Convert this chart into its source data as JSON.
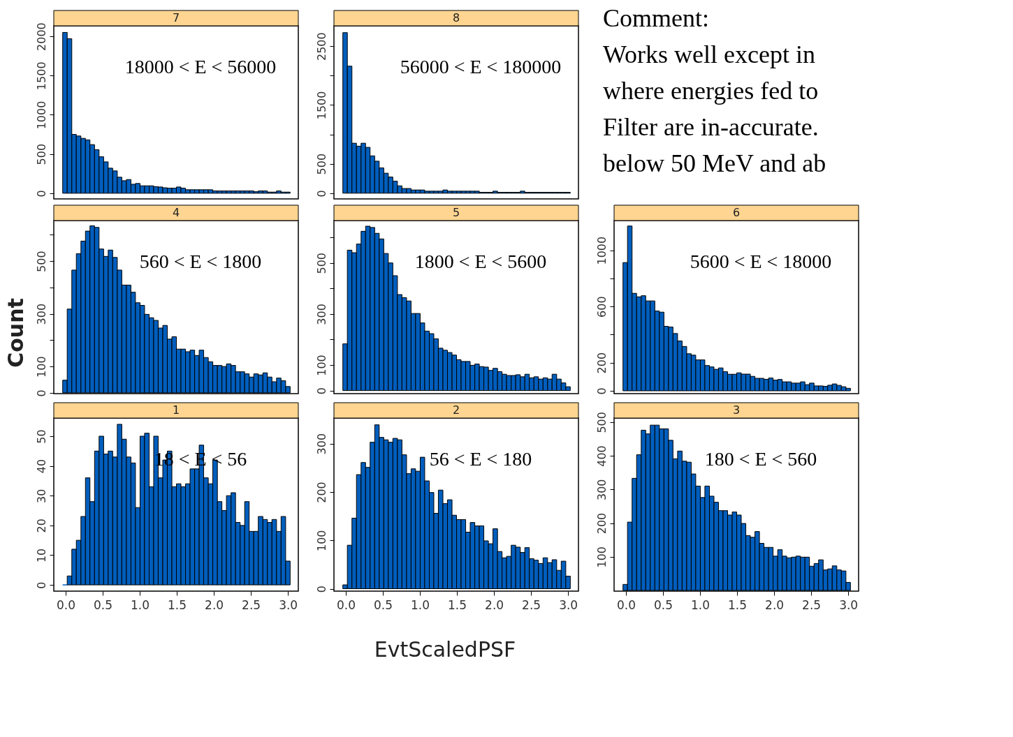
{
  "chart_data": [
    {
      "type": "histogram",
      "title": "7",
      "annotations": [
        "18000 < E < 56000"
      ],
      "color": "#005ebd",
      "tick_labels": "y",
      "xlim": [
        -0.16,
        3.14
      ],
      "ylim": [
        -72,
        2134
      ],
      "yticks": [
        0,
        500,
        1000,
        1500,
        2000
      ],
      "bins": [
        -0.04,
        0.021,
        0.083,
        0.144,
        0.206,
        0.267,
        0.328,
        0.39,
        0.451,
        0.513,
        0.574,
        0.635,
        0.697,
        0.758,
        0.82,
        0.881,
        0.942,
        1.004,
        1.065,
        1.127,
        1.188,
        1.249,
        1.311,
        1.372,
        1.434,
        1.495,
        1.556,
        1.618,
        1.679,
        1.741,
        1.802,
        1.863,
        1.925,
        1.986,
        2.048,
        2.109,
        2.17,
        2.232,
        2.293,
        2.355,
        2.416,
        2.477,
        2.539,
        2.6,
        2.662,
        2.723,
        2.784,
        2.846,
        2.907,
        2.969,
        3.03
      ],
      "values": [
        2050,
        1970,
        750,
        730,
        700,
        680,
        620,
        555,
        465,
        400,
        320,
        285,
        205,
        160,
        175,
        115,
        125,
        95,
        95,
        95,
        85,
        80,
        70,
        65,
        65,
        80,
        65,
        45,
        45,
        45,
        45,
        45,
        45,
        30,
        30,
        30,
        30,
        30,
        30,
        30,
        30,
        30,
        20,
        30,
        30,
        15,
        15,
        30,
        15,
        15
      ]
    },
    {
      "type": "histogram",
      "title": "8",
      "annotations": [
        "56000 < E < 180000"
      ],
      "color": "#005ebd",
      "tick_labels": "y",
      "xlim": [
        -0.16,
        3.14
      ],
      "ylim": [
        -97,
        2846
      ],
      "yticks": [
        0,
        500,
        {
          "value": 1000,
          "label": null
        },
        1500,
        {
          "value": 2000,
          "label": null
        },
        2500
      ],
      "bins": [
        -0.04,
        0.021,
        0.083,
        0.144,
        0.206,
        0.267,
        0.328,
        0.39,
        0.451,
        0.513,
        0.574,
        0.635,
        0.697,
        0.758,
        0.82,
        0.881,
        0.942,
        1.004,
        1.065,
        1.127,
        1.188,
        1.249,
        1.311,
        1.372,
        1.434,
        1.495,
        1.556,
        1.618,
        1.679,
        1.741,
        1.802,
        1.863,
        1.925,
        1.986,
        2.048,
        2.109,
        2.17,
        2.232,
        2.293,
        2.355,
        2.416,
        2.477,
        2.539,
        2.6,
        2.662,
        2.723,
        2.784,
        2.846,
        2.907,
        2.969,
        3.03
      ],
      "values": [
        2730,
        2160,
        850,
        800,
        850,
        780,
        635,
        545,
        430,
        340,
        275,
        205,
        125,
        80,
        80,
        55,
        55,
        55,
        35,
        35,
        35,
        35,
        55,
        35,
        35,
        35,
        35,
        35,
        35,
        35,
        15,
        15,
        15,
        35,
        15,
        15,
        15,
        15,
        15,
        35,
        15,
        15,
        15,
        15,
        15,
        15,
        15,
        15,
        15,
        15
      ]
    },
    {
      "type": "other",
      "annotations": [
        "Comment:",
        "Works well except in",
        "where energies fed to",
        "Filter are in-accurate.",
        "below 50 MeV and ab"
      ]
    },
    {
      "type": "histogram",
      "title": "4",
      "ylabel": "Count",
      "annotations": [
        "560 < E < 1800"
      ],
      "color": "#005ebd",
      "tick_labels": "y",
      "xlim": [
        -0.16,
        3.14
      ],
      "ylim": [
        -3,
        654
      ],
      "yticks": [
        0,
        100,
        {
          "value": 200,
          "label": null
        },
        300,
        {
          "value": 400,
          "label": null
        },
        500,
        {
          "value": 600,
          "label": null
        }
      ],
      "bins": [
        -0.04,
        0.021,
        0.083,
        0.144,
        0.206,
        0.267,
        0.328,
        0.39,
        0.451,
        0.513,
        0.574,
        0.635,
        0.697,
        0.758,
        0.82,
        0.881,
        0.942,
        1.004,
        1.065,
        1.127,
        1.188,
        1.249,
        1.311,
        1.372,
        1.434,
        1.495,
        1.556,
        1.618,
        1.679,
        1.741,
        1.802,
        1.863,
        1.925,
        1.986,
        2.048,
        2.109,
        2.17,
        2.232,
        2.293,
        2.355,
        2.416,
        2.477,
        2.539,
        2.6,
        2.662,
        2.723,
        2.784,
        2.846,
        2.907,
        2.969,
        3.03
      ],
      "values": [
        48,
        318,
        466,
        528,
        576,
        614,
        634,
        628,
        546,
        518,
        542,
        514,
        466,
        409,
        409,
        382,
        342,
        332,
        298,
        285,
        275,
        246,
        256,
        204,
        213,
        166,
        166,
        156,
        162,
        142,
        162,
        134,
        118,
        104,
        104,
        100,
        110,
        104,
        80,
        80,
        72,
        60,
        72,
        68,
        76,
        60,
        42,
        56,
        46,
        24
      ]
    },
    {
      "type": "histogram",
      "title": "5",
      "annotations": [
        "1800 < E < 5600"
      ],
      "color": "#005ebd",
      "tick_labels": "y",
      "xlim": [
        -0.16,
        3.14
      ],
      "ylim": [
        -12,
        666
      ],
      "yticks": [
        0,
        100,
        {
          "value": 200,
          "label": null
        },
        300,
        {
          "value": 400,
          "label": null
        },
        500,
        {
          "value": 600,
          "label": null
        }
      ],
      "bins": [
        -0.04,
        0.021,
        0.083,
        0.144,
        0.206,
        0.267,
        0.328,
        0.39,
        0.451,
        0.513,
        0.574,
        0.635,
        0.697,
        0.758,
        0.82,
        0.881,
        0.942,
        1.004,
        1.065,
        1.127,
        1.188,
        1.249,
        1.311,
        1.372,
        1.434,
        1.495,
        1.556,
        1.618,
        1.679,
        1.741,
        1.802,
        1.863,
        1.925,
        1.986,
        2.048,
        2.109,
        2.17,
        2.232,
        2.293,
        2.355,
        2.416,
        2.477,
        2.539,
        2.6,
        2.662,
        2.723,
        2.784,
        2.846,
        2.907,
        2.969,
        3.03
      ],
      "values": [
        183,
        550,
        540,
        574,
        624,
        644,
        639,
        616,
        594,
        537,
        500,
        450,
        376,
        364,
        351,
        302,
        302,
        265,
        233,
        223,
        203,
        166,
        158,
        149,
        139,
        121,
        114,
        114,
        99,
        104,
        94,
        92,
        79,
        87,
        74,
        64,
        59,
        59,
        62,
        54,
        64,
        50,
        54,
        45,
        50,
        45,
        64,
        45,
        30,
        15
      ]
    },
    {
      "type": "histogram",
      "title": "6",
      "annotations": [
        "5600 < E < 18000"
      ],
      "color": "#005ebd",
      "tick_labels": "y",
      "xlim": [
        -0.16,
        3.14
      ],
      "ylim": [
        -20,
        1212
      ],
      "yticks": [
        0,
        200,
        {
          "value": 400,
          "label": null
        },
        600,
        {
          "value": 800,
          "label": null
        },
        1000
      ],
      "bins": [
        -0.04,
        0.021,
        0.083,
        0.144,
        0.206,
        0.267,
        0.328,
        0.39,
        0.451,
        0.513,
        0.574,
        0.635,
        0.697,
        0.758,
        0.82,
        0.881,
        0.942,
        1.004,
        1.065,
        1.127,
        1.188,
        1.249,
        1.311,
        1.372,
        1.434,
        1.495,
        1.556,
        1.618,
        1.679,
        1.741,
        1.802,
        1.863,
        1.925,
        1.986,
        2.048,
        2.109,
        2.17,
        2.232,
        2.293,
        2.355,
        2.416,
        2.477,
        2.539,
        2.6,
        2.662,
        2.723,
        2.784,
        2.846,
        2.907,
        2.969,
        3.03
      ],
      "values": [
        913,
        1173,
        694,
        669,
        677,
        640,
        640,
        568,
        560,
        459,
        454,
        408,
        355,
        316,
        264,
        254,
        220,
        220,
        180,
        170,
        153,
        163,
        136,
        118,
        118,
        128,
        119,
        119,
        103,
        89,
        89,
        82,
        91,
        76,
        81,
        64,
        64,
        55,
        55,
        64,
        44,
        55,
        35,
        35,
        32,
        40,
        49,
        39,
        29,
        18
      ]
    },
    {
      "type": "histogram",
      "title": "1",
      "annotations": [
        "18 < E < 56"
      ],
      "color": "#005ebd",
      "xlim": [
        -0.16,
        3.14
      ],
      "xticks": [
        {
          "value": 0,
          "label": "0.0"
        },
        {
          "value": 0.5,
          "label": "0.5"
        },
        {
          "value": 1,
          "label": "1.0"
        },
        {
          "value": 1.5,
          "label": "1.5"
        },
        {
          "value": 2,
          "label": "2.0"
        },
        {
          "value": 2.5,
          "label": "2.5"
        },
        {
          "value": 3,
          "label": "3.0"
        }
      ],
      "ylim": [
        -2.1,
        56.1
      ],
      "yticks": [
        0,
        10,
        20,
        30,
        40,
        50
      ],
      "bins": [
        -0.04,
        0.021,
        0.083,
        0.144,
        0.206,
        0.267,
        0.328,
        0.39,
        0.451,
        0.513,
        0.574,
        0.635,
        0.697,
        0.758,
        0.82,
        0.881,
        0.942,
        1.004,
        1.065,
        1.127,
        1.188,
        1.249,
        1.311,
        1.372,
        1.434,
        1.495,
        1.556,
        1.618,
        1.679,
        1.741,
        1.802,
        1.863,
        1.925,
        1.986,
        2.048,
        2.109,
        2.17,
        2.232,
        2.293,
        2.355,
        2.416,
        2.477,
        2.539,
        2.6,
        2.662,
        2.723,
        2.784,
        2.846,
        2.907,
        2.969,
        3.03
      ],
      "values": [
        0,
        3,
        12,
        15,
        23,
        36,
        28,
        45,
        50,
        44,
        45,
        43,
        54,
        49,
        43,
        41,
        26,
        50,
        51,
        33,
        50,
        36,
        42,
        45,
        33,
        34,
        33,
        34,
        39,
        39,
        47,
        36,
        34,
        42,
        28,
        25,
        30,
        31,
        21,
        20,
        28,
        18,
        18,
        23,
        22,
        21,
        22,
        18,
        23,
        8
      ]
    },
    {
      "type": "histogram",
      "title": "2",
      "xlabel": "EvtScaledPSF",
      "annotations": [
        "56 < E < 180"
      ],
      "color": "#005ebd",
      "xlim": [
        -0.16,
        3.14
      ],
      "xticks": [
        {
          "value": 0,
          "label": "0.0"
        },
        {
          "value": 0.5,
          "label": "0.5"
        },
        {
          "value": 1,
          "label": "1.0"
        },
        {
          "value": 1.5,
          "label": "1.5"
        },
        {
          "value": 2,
          "label": "2.0"
        },
        {
          "value": 2.5,
          "label": "2.5"
        },
        {
          "value": 3,
          "label": "3.0"
        }
      ],
      "ylim": [
        -5,
        353
      ],
      "yticks": [
        0,
        100,
        200,
        300
      ],
      "bins": [
        -0.04,
        0.021,
        0.083,
        0.144,
        0.206,
        0.267,
        0.328,
        0.39,
        0.451,
        0.513,
        0.574,
        0.635,
        0.697,
        0.758,
        0.82,
        0.881,
        0.942,
        1.004,
        1.065,
        1.127,
        1.188,
        1.249,
        1.311,
        1.372,
        1.434,
        1.495,
        1.556,
        1.618,
        1.679,
        1.741,
        1.802,
        1.863,
        1.925,
        1.986,
        2.048,
        2.109,
        2.17,
        2.232,
        2.293,
        2.355,
        2.416,
        2.477,
        2.539,
        2.6,
        2.662,
        2.723,
        2.784,
        2.846,
        2.907,
        2.969,
        3.03
      ],
      "values": [
        8,
        90,
        146,
        236,
        261,
        251,
        303,
        339,
        313,
        308,
        303,
        311,
        308,
        277,
        238,
        248,
        243,
        272,
        223,
        199,
        156,
        204,
        176,
        184,
        152,
        143,
        143,
        117,
        137,
        130,
        130,
        99,
        93,
        124,
        77,
        64,
        67,
        90,
        86,
        75,
        85,
        62,
        59,
        52,
        64,
        54,
        60,
        38,
        57,
        26
      ]
    },
    {
      "type": "histogram",
      "title": "3",
      "annotations": [
        "180 < E < 560"
      ],
      "color": "#005ebd",
      "xlim": [
        -0.16,
        3.14
      ],
      "xticks": [
        {
          "value": 0,
          "label": "0.0"
        },
        {
          "value": 0.5,
          "label": "0.5"
        },
        {
          "value": 1,
          "label": "1.0"
        },
        {
          "value": 1.5,
          "label": "1.5"
        },
        {
          "value": 2,
          "label": "2.0"
        },
        {
          "value": 2.5,
          "label": "2.5"
        },
        {
          "value": 3,
          "label": "3.0"
        }
      ],
      "ylim": [
        -2,
        512
      ],
      "yticks": [
        100,
        200,
        300,
        400,
        500
      ],
      "bins": [
        -0.04,
        0.021,
        0.083,
        0.144,
        0.206,
        0.267,
        0.328,
        0.39,
        0.451,
        0.513,
        0.574,
        0.635,
        0.697,
        0.758,
        0.82,
        0.881,
        0.942,
        1.004,
        1.065,
        1.127,
        1.188,
        1.249,
        1.311,
        1.372,
        1.434,
        1.495,
        1.556,
        1.618,
        1.679,
        1.741,
        1.802,
        1.863,
        1.925,
        1.986,
        2.048,
        2.109,
        2.17,
        2.232,
        2.293,
        2.355,
        2.416,
        2.477,
        2.539,
        2.6,
        2.662,
        2.723,
        2.784,
        2.846,
        2.907,
        2.969,
        3.03
      ],
      "values": [
        18,
        203,
        333,
        403,
        476,
        465,
        491,
        491,
        480,
        480,
        446,
        391,
        414,
        384,
        381,
        346,
        310,
        276,
        310,
        280,
        262,
        237,
        237,
        224,
        233,
        224,
        199,
        163,
        158,
        175,
        140,
        128,
        128,
        102,
        121,
        102,
        97,
        99,
        102,
        99,
        99,
        72,
        80,
        91,
        61,
        64,
        73,
        61,
        58,
        24
      ]
    }
  ]
}
